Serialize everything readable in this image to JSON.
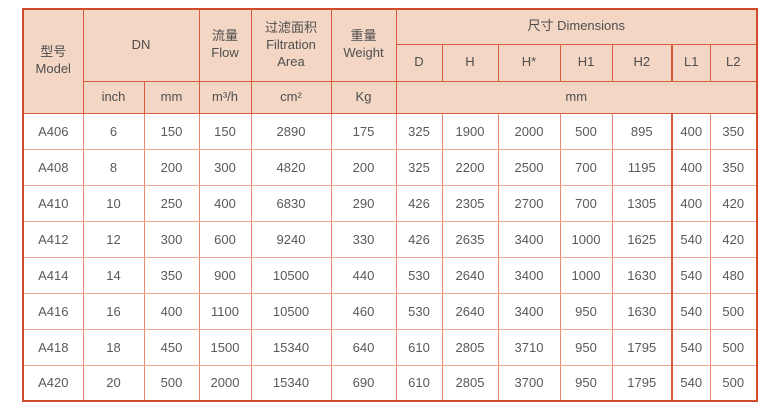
{
  "table": {
    "header": {
      "model": "型号\nModel",
      "dn": "DN",
      "flow": "流量\nFlow",
      "filtration_area": "过滤面积\nFiltration\nArea",
      "weight": "重量\nWeight",
      "dimensions": "尺寸 Dimensions",
      "dimension_columns": [
        "D",
        "H",
        "H*",
        "H1",
        "H2",
        "L1",
        "L2"
      ],
      "units": {
        "dn_inch": "inch",
        "dn_mm": "mm",
        "flow": "m³/h",
        "filtration_area": "cm²",
        "weight": "Kg",
        "dimensions": "mm"
      }
    },
    "rows": [
      {
        "model": "A406",
        "values": [
          "6",
          "150",
          "150",
          "2890",
          "175",
          "325",
          "1900",
          "2000",
          "500",
          "895",
          "400",
          "350"
        ]
      },
      {
        "model": "A408",
        "values": [
          "8",
          "200",
          "300",
          "4820",
          "200",
          "325",
          "2200",
          "2500",
          "700",
          "1195",
          "400",
          "350"
        ]
      },
      {
        "model": "A410",
        "values": [
          "10",
          "250",
          "400",
          "6830",
          "290",
          "426",
          "2305",
          "2700",
          "700",
          "1305",
          "400",
          "420"
        ]
      },
      {
        "model": "A412",
        "values": [
          "12",
          "300",
          "600",
          "9240",
          "330",
          "426",
          "2635",
          "3400",
          "1000",
          "1625",
          "540",
          "420"
        ]
      },
      {
        "model": "A414",
        "values": [
          "14",
          "350",
          "900",
          "10500",
          "440",
          "530",
          "2640",
          "3400",
          "1000",
          "1630",
          "540",
          "480"
        ]
      },
      {
        "model": "A416",
        "values": [
          "16",
          "400",
          "1100",
          "10500",
          "460",
          "530",
          "2640",
          "3400",
          "950",
          "1630",
          "540",
          "500"
        ]
      },
      {
        "model": "A418",
        "values": [
          "18",
          "450",
          "1500",
          "15340",
          "640",
          "610",
          "2805",
          "3710",
          "950",
          "1795",
          "540",
          "500"
        ]
      },
      {
        "model": "A420",
        "values": [
          "20",
          "500",
          "2000",
          "15340",
          "690",
          "610",
          "2805",
          "3700",
          "950",
          "1795",
          "540",
          "500"
        ]
      }
    ],
    "colors": {
      "header_background": "#f4d6c4",
      "header_grid": "#da5c3e",
      "outer_border": "#d14a2c",
      "body_grid_vertical": "#e88a74",
      "body_grid_horizontal": "#f0a492",
      "text": "#595959"
    }
  }
}
